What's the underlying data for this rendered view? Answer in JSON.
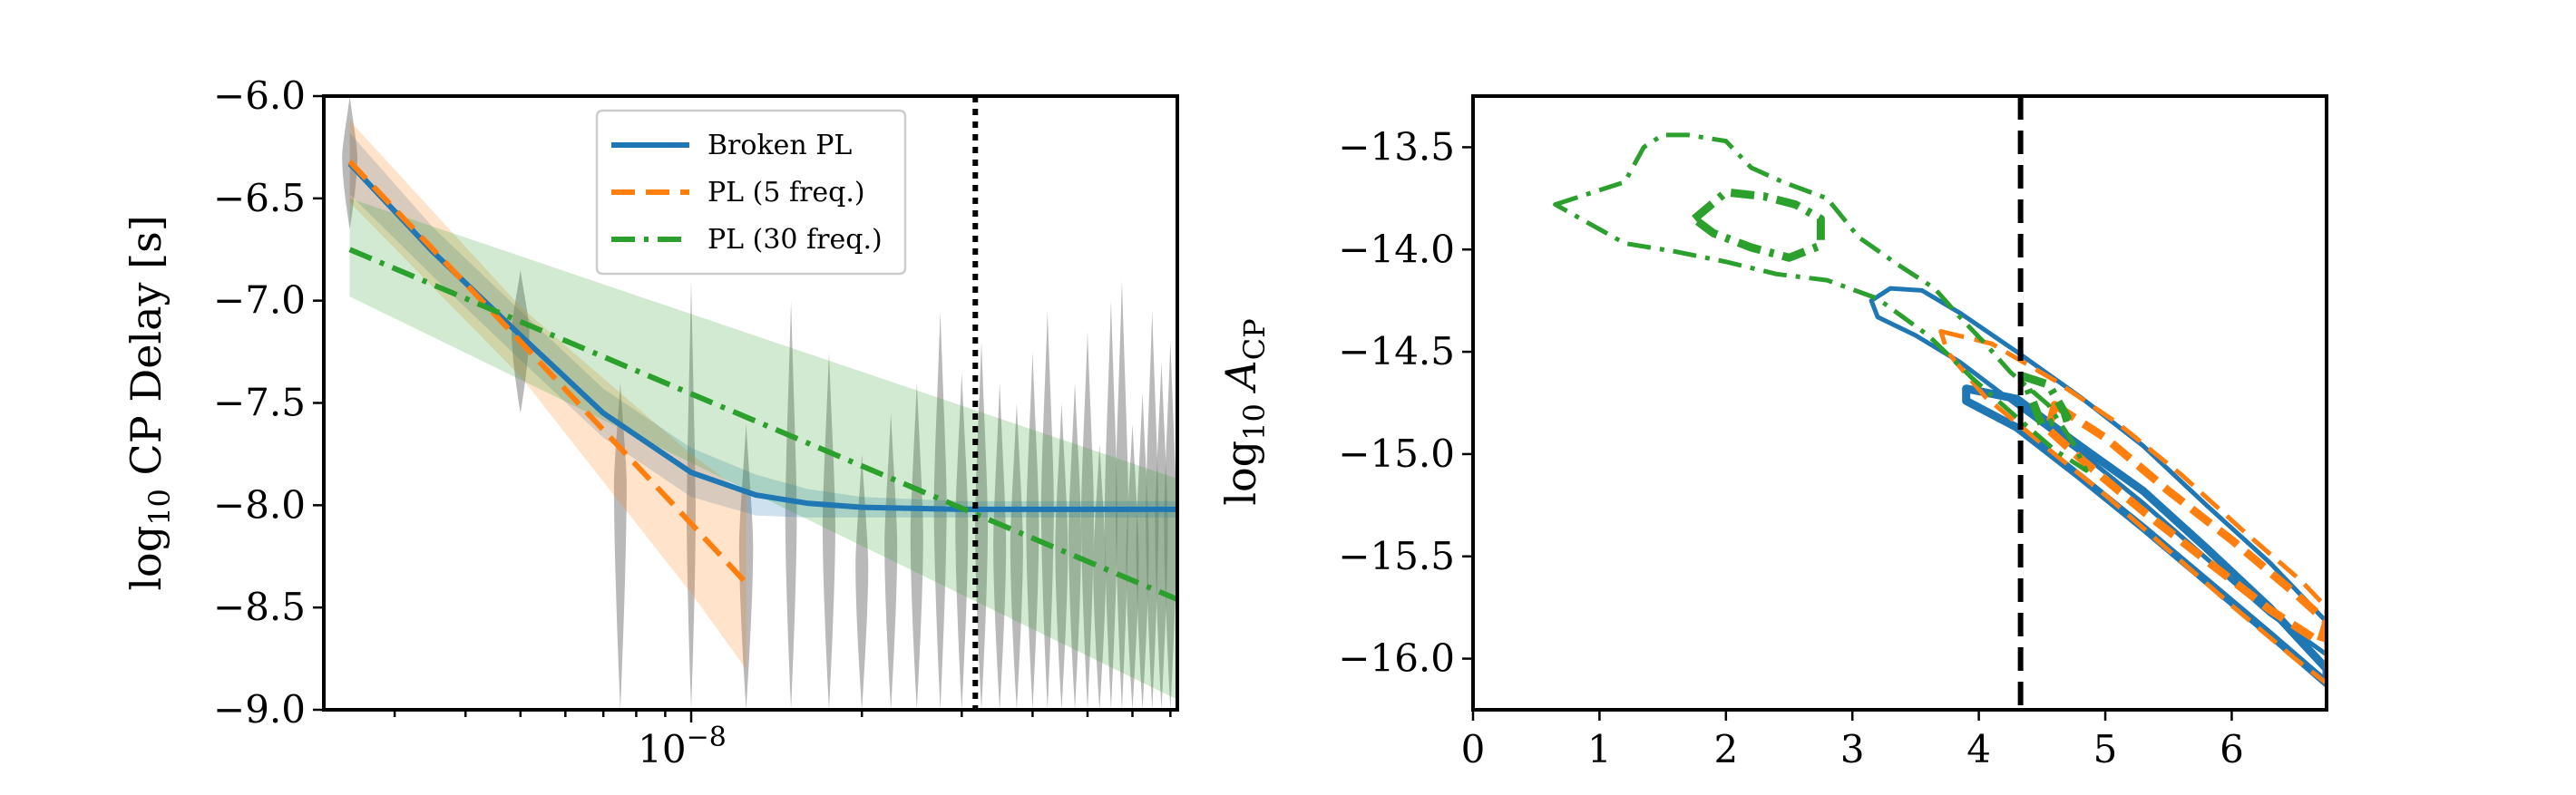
{
  "chart_data": [
    {
      "type": "line",
      "xscale": "log",
      "xlim": [
        2.25e-09,
        7.2e-08
      ],
      "ylim": [
        -9.0,
        -6.0
      ],
      "xlabel": "",
      "ylabel": "log10 CP Delay [s]",
      "ylabel_parts": {
        "base": "log",
        "sub": "10",
        "rest": " CP Delay [s]"
      },
      "yticks": [
        -9.0,
        -8.5,
        -8.0,
        -7.5,
        -7.0,
        -6.5,
        -6.0
      ],
      "ytick_labels": [
        "−9.0",
        "−8.5",
        "−8.0",
        "−7.5",
        "−7.0",
        "−6.5",
        "−6.0"
      ],
      "xtick_major": [
        1e-08
      ],
      "xtick_major_labels": [
        "10",
        "−8"
      ],
      "vline": {
        "x": 3.17e-08,
        "style": "dotted",
        "color": "#000000"
      },
      "legend": {
        "position": "top-center"
      },
      "series": [
        {
          "name": "Broken PL",
          "color": "#1f77b4",
          "dash": "solid",
          "x": [
            2.5e-09,
            3.5e-09,
            5e-09,
            7e-09,
            1e-08,
            1.3e-08,
            1.6e-08,
            2e-08,
            3e-08,
            5e-08,
            7.2e-08
          ],
          "y": [
            -6.33,
            -6.76,
            -7.17,
            -7.55,
            -7.84,
            -7.95,
            -7.99,
            -8.01,
            -8.02,
            -8.02,
            -8.02
          ],
          "band_upper": [
            -6.18,
            -6.64,
            -7.05,
            -7.43,
            -7.72,
            -7.85,
            -7.92,
            -7.96,
            -7.98,
            -7.98,
            -7.98
          ],
          "band_lower": [
            -6.48,
            -6.88,
            -7.29,
            -7.67,
            -7.96,
            -8.05,
            -8.06,
            -8.06,
            -8.06,
            -8.06,
            -8.06
          ]
        },
        {
          "name": "PL (5 freq.)",
          "color": "#ff7f0e",
          "dash": "dashed",
          "x": [
            2.5e-09,
            5e-09,
            1e-08,
            1.25e-08
          ],
          "y": [
            -6.32,
            -7.2,
            -8.09,
            -8.38
          ],
          "band_upper": [
            -6.12,
            -7.03,
            -7.75,
            -7.95
          ],
          "band_lower": [
            -6.52,
            -7.37,
            -8.43,
            -8.8
          ]
        },
        {
          "name": "PL (30 freq.)",
          "color": "#2ca02c",
          "dash": "dashdot",
          "x": [
            2.5e-09,
            7.2e-08
          ],
          "y": [
            -6.75,
            -8.46
          ],
          "band_upper": [
            -6.5,
            -7.87
          ],
          "band_lower": [
            -6.98,
            -8.95
          ]
        }
      ],
      "violins": {
        "color": "#808080",
        "note": "posterior distributions of delay per frequency bin",
        "x": [
          2.5e-09,
          5e-09,
          7.5e-09,
          1e-08,
          1.25e-08,
          1.5e-08,
          1.75e-08,
          2e-08,
          2.25e-08,
          2.5e-08,
          2.75e-08,
          3e-08,
          3.25e-08,
          3.5e-08,
          3.75e-08,
          4e-08,
          4.25e-08,
          4.5e-08,
          4.75e-08,
          5e-08,
          5.25e-08,
          5.5e-08,
          5.75e-08,
          6e-08,
          6.25e-08,
          6.5e-08,
          6.75e-08,
          7e-08
        ],
        "ymin": [
          -6.65,
          -7.55,
          -9.0,
          -9.0,
          -9.0,
          -9.0,
          -9.0,
          -9.0,
          -9.0,
          -9.0,
          -9.0,
          -9.0,
          -9.0,
          -9.0,
          -9.0,
          -9.0,
          -9.0,
          -9.0,
          -9.0,
          -9.0,
          -9.0,
          -9.0,
          -9.0,
          -9.0,
          -9.0,
          -9.0,
          -9.0,
          -9.0
        ],
        "ymax": [
          -6.0,
          -6.85,
          -7.4,
          -6.9,
          -7.6,
          -7.0,
          -7.25,
          -7.75,
          -7.55,
          -7.4,
          -7.05,
          -7.35,
          -7.2,
          -7.4,
          -7.5,
          -7.25,
          -7.05,
          -7.5,
          -7.4,
          -7.15,
          -7.7,
          -7.0,
          -6.9,
          -7.6,
          -7.45,
          -7.05,
          -7.3,
          -7.2
        ],
        "center": [
          -6.3,
          -7.15,
          -7.9,
          -8.05,
          -8.2,
          -8.05,
          -8.1,
          -8.3,
          -8.2,
          -8.15,
          -8.0,
          -8.1,
          -8.1,
          -8.2,
          -8.2,
          -8.1,
          -8.0,
          -8.2,
          -8.15,
          -8.05,
          -8.3,
          -8.05,
          -8.0,
          -8.25,
          -8.2,
          -8.05,
          -8.1,
          -8.1
        ],
        "halfwidth": [
          0.6,
          0.7,
          0.5,
          0.35,
          0.55,
          0.45,
          0.5,
          0.5,
          0.5,
          0.5,
          0.5,
          0.5,
          0.5,
          0.5,
          0.5,
          0.5,
          0.5,
          0.5,
          0.5,
          0.5,
          0.5,
          0.5,
          0.5,
          0.5,
          0.5,
          0.5,
          0.5,
          0.5
        ]
      }
    },
    {
      "type": "contour",
      "xlim": [
        0,
        6.75
      ],
      "ylim": [
        -16.25,
        -13.25
      ],
      "xlabel": "",
      "ylabel": "log10 A_CP",
      "ylabel_parts": {
        "base": "log",
        "sub": "10",
        "var": " A",
        "varsub": "CP"
      },
      "xticks": [
        0,
        1,
        2,
        3,
        4,
        5,
        6
      ],
      "xtick_labels": [
        "0",
        "1",
        "2",
        "3",
        "4",
        "5",
        "6"
      ],
      "yticks": [
        -16.0,
        -15.5,
        -15.0,
        -14.5,
        -14.0,
        -13.5
      ],
      "ytick_labels": [
        "−16.0",
        "−15.5",
        "−15.0",
        "−14.5",
        "−14.0",
        "−13.5"
      ],
      "vline": {
        "x": 4.33,
        "style": "dashed",
        "color": "#000000"
      },
      "contours": [
        {
          "series": "Broken PL",
          "color": "#1f77b4",
          "dash": "solid",
          "level": "outer",
          "x": [
            3.15,
            3.3,
            3.55,
            3.85,
            4.3,
            4.8,
            5.3,
            5.8,
            6.3,
            6.75,
            6.75,
            6.3,
            5.8,
            5.3,
            4.8,
            4.3,
            3.85,
            3.5,
            3.2,
            3.15
          ],
          "y": [
            -14.25,
            -14.19,
            -14.2,
            -14.31,
            -14.5,
            -14.72,
            -14.96,
            -15.25,
            -15.53,
            -15.82,
            -15.98,
            -15.78,
            -15.51,
            -15.24,
            -14.99,
            -14.76,
            -14.55,
            -14.42,
            -14.33,
            -14.25
          ]
        },
        {
          "series": "Broken PL",
          "color": "#1f77b4",
          "dash": "solid",
          "level": "inner",
          "x": [
            3.9,
            4.3,
            4.8,
            5.3,
            5.8,
            6.3,
            6.75,
            6.75,
            6.3,
            5.8,
            5.3,
            4.8,
            4.3,
            3.9,
            3.9
          ],
          "y": [
            -14.68,
            -14.73,
            -14.96,
            -15.18,
            -15.46,
            -15.75,
            -16.05,
            -16.12,
            -15.88,
            -15.62,
            -15.36,
            -15.11,
            -14.87,
            -14.74,
            -14.68
          ]
        },
        {
          "series": "PL (5 freq.)",
          "color": "#ff7f0e",
          "dash": "dashed",
          "level": "outer",
          "x": [
            3.7,
            4.1,
            4.6,
            5.1,
            5.6,
            6.1,
            6.55,
            6.75,
            6.75,
            6.5,
            6.0,
            5.5,
            5.0,
            4.5,
            4.05,
            3.75,
            3.7
          ],
          "y": [
            -14.4,
            -14.46,
            -14.64,
            -14.85,
            -15.1,
            -15.38,
            -15.62,
            -15.75,
            -16.12,
            -16.0,
            -15.74,
            -15.47,
            -15.2,
            -14.95,
            -14.72,
            -14.5,
            -14.4
          ]
        },
        {
          "series": "PL (5 freq.)",
          "color": "#ff7f0e",
          "dash": "dashed",
          "level": "inner",
          "x": [
            4.6,
            5.0,
            5.5,
            6.0,
            6.5,
            6.75,
            6.7,
            6.3,
            5.8,
            5.3,
            4.8,
            4.55,
            4.6
          ],
          "y": [
            -14.76,
            -14.92,
            -15.18,
            -15.42,
            -15.68,
            -15.82,
            -15.92,
            -15.76,
            -15.52,
            -15.28,
            -15.02,
            -14.88,
            -14.76
          ]
        },
        {
          "series": "PL (30 freq.)",
          "color": "#2ca02c",
          "dash": "dashdot",
          "level": "outer",
          "x": [
            0.65,
            1.2,
            1.35,
            1.5,
            1.7,
            2.0,
            2.2,
            2.45,
            2.8,
            3.05,
            3.35,
            3.65,
            3.85,
            4.05,
            4.25,
            4.55,
            4.75,
            4.85,
            4.6,
            4.3,
            3.95,
            3.6,
            3.2,
            2.8,
            2.4,
            2.0,
            1.6,
            1.2,
            0.65
          ],
          "y": [
            -13.78,
            -13.67,
            -13.5,
            -13.44,
            -13.44,
            -13.47,
            -13.6,
            -13.67,
            -13.75,
            -13.94,
            -14.07,
            -14.19,
            -14.33,
            -14.46,
            -14.6,
            -14.76,
            -14.95,
            -15.08,
            -14.98,
            -14.82,
            -14.63,
            -14.42,
            -14.24,
            -14.15,
            -14.12,
            -14.06,
            -14.01,
            -13.97,
            -13.78
          ]
        },
        {
          "series": "PL (30 freq.)",
          "color": "#2ca02c",
          "dash": "dashdot",
          "level": "inner",
          "x": [
            1.75,
            2.0,
            2.3,
            2.55,
            2.75,
            2.75,
            2.5,
            2.2,
            1.9,
            1.75
          ],
          "y": [
            -13.85,
            -13.72,
            -13.74,
            -13.78,
            -13.85,
            -13.98,
            -14.04,
            -13.99,
            -13.92,
            -13.85
          ]
        },
        {
          "series": "PL (30 freq.)",
          "color": "#2ca02c",
          "dash": "dashdot",
          "level": "inner",
          "x": [
            4.35,
            4.55,
            4.7,
            4.5,
            4.35
          ],
          "y": [
            -14.62,
            -14.66,
            -14.82,
            -14.86,
            -14.62
          ]
        }
      ]
    }
  ]
}
